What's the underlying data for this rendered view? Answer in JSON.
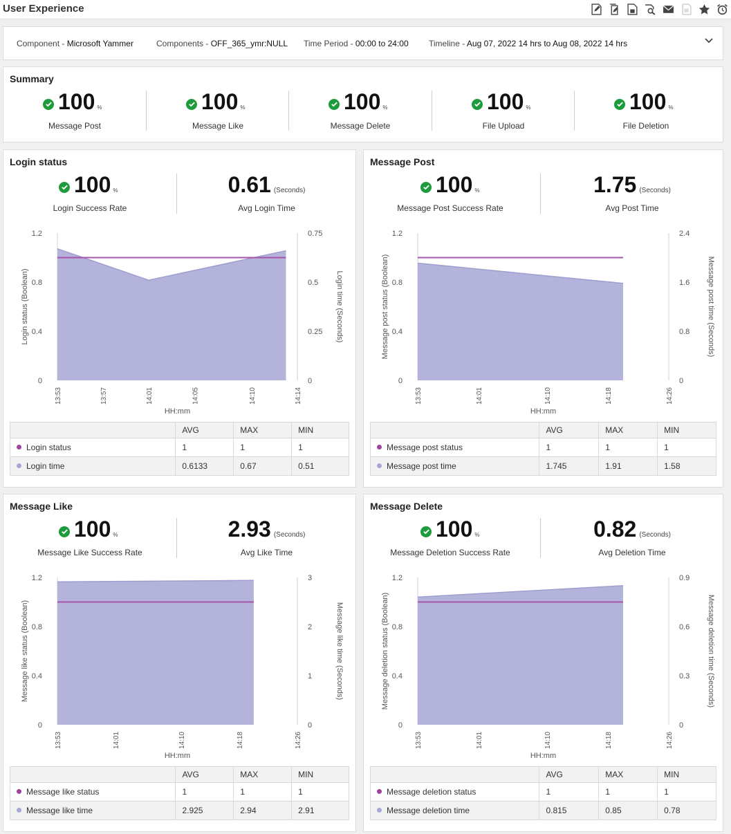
{
  "app": {
    "title": "User Experience"
  },
  "toolbar": {
    "icons": [
      "edit-report-icon",
      "copy-report-icon",
      "pdf-export-icon",
      "search-report-icon",
      "email-icon",
      "disabled-export-icon",
      "favorite-star-icon",
      "alarm-clock-icon"
    ]
  },
  "filters": {
    "component_label": "Component - ",
    "component_value": "Microsoft Yammer",
    "components_label": "Components - ",
    "components_value": "OFF_365_ymr:NULL",
    "period_label": "Time Period - ",
    "period_value": "00:00 to 24:00",
    "timeline_label": "Timeline - ",
    "timeline_value": "Aug 07, 2022 14 hrs to Aug 08, 2022 14 hrs"
  },
  "summary": {
    "title": "Summary",
    "items": [
      {
        "value": "100",
        "unit": "%",
        "label": "Message Post"
      },
      {
        "value": "100",
        "unit": "%",
        "label": "Message Like"
      },
      {
        "value": "100",
        "unit": "%",
        "label": "Message Delete"
      },
      {
        "value": "100",
        "unit": "%",
        "label": "File Upload"
      },
      {
        "value": "100",
        "unit": "%",
        "label": "File Deletion"
      }
    ]
  },
  "colors": {
    "success": "#1e9b3b",
    "area": "#b3b3db",
    "status_line": "#a554a8",
    "status_dot": "#a0429e",
    "time_dot": "#a8a8d6"
  },
  "panels": [
    {
      "title": "Login status",
      "rate_value": "100",
      "rate_unit": "%",
      "rate_label": "Login Success Rate",
      "time_value": "0.61",
      "time_unit": "(Seconds)",
      "time_label": "Avg Login Time",
      "table": {
        "headers": [
          "",
          "AVG",
          "MAX",
          "MIN"
        ],
        "rows": [
          {
            "name": "Login status",
            "avg": "1",
            "max": "1",
            "min": "1"
          },
          {
            "name": "Login time",
            "avg": "0.6133",
            "max": "0.67",
            "min": "0.51"
          }
        ]
      }
    },
    {
      "title": "Message Post",
      "rate_value": "100",
      "rate_unit": "%",
      "rate_label": "Message Post Success Rate",
      "time_value": "1.75",
      "time_unit": "(Seconds)",
      "time_label": "Avg Post Time",
      "table": {
        "headers": [
          "",
          "AVG",
          "MAX",
          "MIN"
        ],
        "rows": [
          {
            "name": "Message post status",
            "avg": "1",
            "max": "1",
            "min": "1"
          },
          {
            "name": "Message post time",
            "avg": "1.745",
            "max": "1.91",
            "min": "1.58"
          }
        ]
      }
    },
    {
      "title": "Message Like",
      "rate_value": "100",
      "rate_unit": "%",
      "rate_label": "Message Like Success Rate",
      "time_value": "2.93",
      "time_unit": "(Seconds)",
      "time_label": "Avg Like Time",
      "table": {
        "headers": [
          "",
          "AVG",
          "MAX",
          "MIN"
        ],
        "rows": [
          {
            "name": "Message like status",
            "avg": "1",
            "max": "1",
            "min": "1"
          },
          {
            "name": "Message like time",
            "avg": "2.925",
            "max": "2.94",
            "min": "2.91"
          }
        ]
      }
    },
    {
      "title": "Message Delete",
      "rate_value": "100",
      "rate_unit": "%",
      "rate_label": "Message Deletion Success Rate",
      "time_value": "0.82",
      "time_unit": "(Seconds)",
      "time_label": "Avg Deletion Time",
      "table": {
        "headers": [
          "",
          "AVG",
          "MAX",
          "MIN"
        ],
        "rows": [
          {
            "name": "Message deletion status",
            "avg": "1",
            "max": "1",
            "min": "1"
          },
          {
            "name": "Message deletion time",
            "avg": "0.815",
            "max": "0.85",
            "min": "0.78"
          }
        ]
      }
    }
  ],
  "chart_data": [
    {
      "type": "area",
      "xlabel": "HH:mm",
      "ylabel": "Login status (Boolean)",
      "y2label": "Login time (Seconds)",
      "x_ticks": [
        "13:53",
        "13:57",
        "14:01",
        "14:05",
        "14:10",
        "14:14"
      ],
      "ylim": [
        0,
        1.2
      ],
      "y_ticks": [
        "0",
        "0.4",
        "0.8",
        "1.2"
      ],
      "y2lim": [
        0,
        0.75
      ],
      "y2_ticks": [
        "0",
        "0.25",
        "0.5",
        "0.75"
      ],
      "series": [
        {
          "name": "Login time",
          "axis": "right",
          "x": [
            "13:53",
            "14:01",
            "14:13"
          ],
          "values": [
            0.67,
            0.51,
            0.66
          ]
        },
        {
          "name": "Login status",
          "axis": "left",
          "x": [
            "13:53",
            "14:13"
          ],
          "values": [
            1,
            1
          ]
        }
      ]
    },
    {
      "type": "area",
      "xlabel": "HH:mm",
      "ylabel": "Message post status (Boolean)",
      "y2label": "Message post time (Seconds)",
      "x_ticks": [
        "13:53",
        "14:01",
        "14:10",
        "14:18",
        "14:26"
      ],
      "ylim": [
        0,
        1.2
      ],
      "y_ticks": [
        "0",
        "0.4",
        "0.8",
        "1.2"
      ],
      "y2lim": [
        0,
        2.4
      ],
      "y2_ticks": [
        "0",
        "0.8",
        "1.6",
        "2.4"
      ],
      "series": [
        {
          "name": "Message post time",
          "axis": "right",
          "x": [
            "13:53",
            "14:20"
          ],
          "values": [
            1.91,
            1.58
          ]
        },
        {
          "name": "Message post status",
          "axis": "left",
          "x": [
            "13:53",
            "14:20"
          ],
          "values": [
            1,
            1
          ]
        }
      ]
    },
    {
      "type": "area",
      "xlabel": "HH:mm",
      "ylabel": "Message like status (Boolean)",
      "y2label": "Message like time (Seconds)",
      "x_ticks": [
        "13:53",
        "14:01",
        "14:10",
        "14:18",
        "14:26"
      ],
      "ylim": [
        0,
        1.2
      ],
      "y_ticks": [
        "0",
        "0.4",
        "0.8",
        "1.2"
      ],
      "y2lim": [
        0,
        3
      ],
      "y2_ticks": [
        "0",
        "1",
        "2",
        "3"
      ],
      "series": [
        {
          "name": "Message like time",
          "axis": "right",
          "x": [
            "13:53",
            "14:20"
          ],
          "values": [
            2.91,
            2.94
          ]
        },
        {
          "name": "Message like status",
          "axis": "left",
          "x": [
            "13:53",
            "14:20"
          ],
          "values": [
            1,
            1
          ]
        }
      ]
    },
    {
      "type": "area",
      "xlabel": "HH:mm",
      "ylabel": "Message deletion status (Boolean)",
      "y2label": "Message deletion time (Seconds)",
      "x_ticks": [
        "13:53",
        "14:01",
        "14:10",
        "14:18",
        "14:26"
      ],
      "ylim": [
        0,
        1.2
      ],
      "y_ticks": [
        "0",
        "0.4",
        "0.8",
        "1.2"
      ],
      "y2lim": [
        0,
        0.9
      ],
      "y2_ticks": [
        "0",
        "0.3",
        "0.6",
        "0.9"
      ],
      "series": [
        {
          "name": "Message deletion time",
          "axis": "right",
          "x": [
            "13:53",
            "14:20"
          ],
          "values": [
            0.78,
            0.85
          ]
        },
        {
          "name": "Message deletion status",
          "axis": "left",
          "x": [
            "13:53",
            "14:20"
          ],
          "values": [
            1,
            1
          ]
        }
      ]
    }
  ]
}
